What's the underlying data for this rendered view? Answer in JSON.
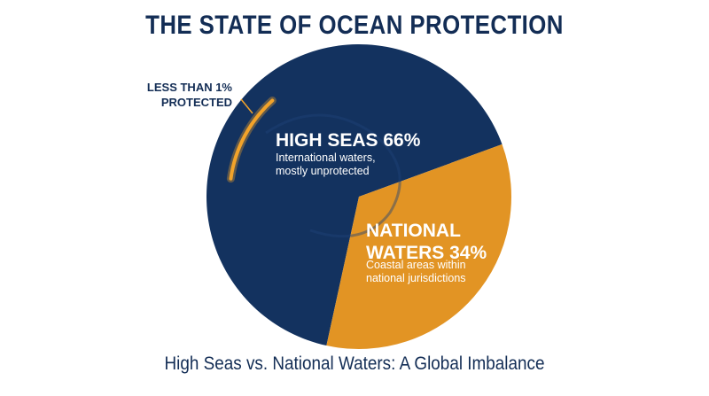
{
  "title": "THE STATE OF OCEAN PROTECTION",
  "subtitle": "High Seas vs. National Waters: A Global Imbalance",
  "colors": {
    "high_seas": "#13325f",
    "national_waters": "#e29424",
    "title": "#132d55",
    "callout": "#f2a32a"
  },
  "chart_data": {
    "type": "pie",
    "slices": [
      {
        "name": "HIGH SEAS 66%",
        "value": 66,
        "description": [
          "International waters,",
          "mostly unprotected"
        ],
        "color": "#13325f"
      },
      {
        "name": "NATIONAL WATERS 34%",
        "name_lines": [
          "NATIONAL",
          "WATERS 34%"
        ],
        "value": 34,
        "description": [
          "Coastal areas within",
          "national jurisdictions"
        ],
        "color": "#e29424"
      }
    ],
    "annotation": {
      "lines": [
        "LESS THAN 1%",
        "PROTECTED"
      ],
      "value_percent_of_high_seas_protected": 1
    },
    "legend": "none"
  }
}
